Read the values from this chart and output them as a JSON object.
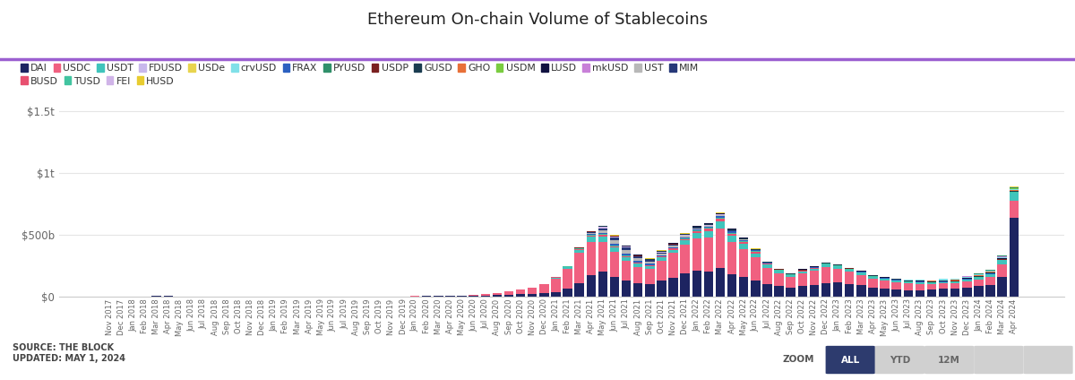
{
  "title": "Ethereum On-chain Volume of Stablecoins",
  "background_color": "#ffffff",
  "accent_line_color": "#9b59b6",
  "source_text": "SOURCE: THE BLOCK\nUPDATED: MAY 1, 2024",
  "months": [
    "Nov 2017",
    "Dec 2017",
    "Jan 2018",
    "Feb 2018",
    "Mar 2018",
    "Apr 2018",
    "May 2018",
    "Jun 2018",
    "Jul 2018",
    "Aug 2018",
    "Sep 2018",
    "Oct 2018",
    "Nov 2018",
    "Dec 2018",
    "Jan 2019",
    "Feb 2019",
    "Mar 2019",
    "Apr 2019",
    "May 2019",
    "Jun 2019",
    "Jul 2019",
    "Aug 2019",
    "Sep 2019",
    "Oct 2019",
    "Nov 2019",
    "Dec 2019",
    "Jan 2020",
    "Feb 2020",
    "Mar 2020",
    "Apr 2020",
    "May 2020",
    "Jun 2020",
    "Jul 2020",
    "Aug 2020",
    "Sep 2020",
    "Oct 2020",
    "Nov 2020",
    "Dec 2020",
    "Jan 2021",
    "Feb 2021",
    "Mar 2021",
    "Apr 2021",
    "May 2021",
    "Jun 2021",
    "Jul 2021",
    "Aug 2021",
    "Sep 2021",
    "Oct 2021",
    "Nov 2021",
    "Dec 2021",
    "Jan 2022",
    "Feb 2022",
    "Mar 2022",
    "Apr 2022",
    "May 2022",
    "Jun 2022",
    "Jul 2022",
    "Aug 2022",
    "Sep 2022",
    "Oct 2022",
    "Nov 2022",
    "Dec 2022",
    "Jan 2023",
    "Feb 2023",
    "Mar 2023",
    "Apr 2023",
    "May 2023",
    "Jun 2023",
    "Jul 2023",
    "Aug 2023",
    "Sep 2023",
    "Oct 2023",
    "Nov 2023",
    "Dec 2023",
    "Jan 2024",
    "Feb 2024",
    "Mar 2024",
    "Apr 2024"
  ],
  "legend_row1": [
    "DAI",
    "USDC",
    "USDT",
    "FDUSD",
    "USDe",
    "crvUSD",
    "FRAX",
    "PYUSD",
    "USDP",
    "GUSD",
    "GHO",
    "USDM",
    "LUSD",
    "mkUSD",
    "UST",
    "MIM"
  ],
  "legend_row2": [
    "BUSD",
    "TUSD",
    "FEI",
    "HUSD"
  ],
  "colors": {
    "DAI": "#1d2461",
    "USDC": "#f06080",
    "USDT": "#40c4bc",
    "FDUSD": "#c8b8ec",
    "USDe": "#e8d44e",
    "crvUSD": "#80e0e8",
    "FRAX": "#2c60c0",
    "PYUSD": "#30906a",
    "USDP": "#7a2020",
    "GUSD": "#1a3c50",
    "GHO": "#e87038",
    "USDM": "#7acc40",
    "LUSD": "#111240",
    "mkUSD": "#c880d8",
    "UST": "#b8b8b8",
    "MIM": "#263878",
    "BUSD": "#e85070",
    "TUSD": "#42c4a0",
    "FEI": "#d0b4e8",
    "HUSD": "#e8cc30"
  },
  "stack_order": [
    "DAI",
    "USDC",
    "USDT",
    "BUSD",
    "TUSD",
    "FRAX",
    "UST",
    "MIM",
    "FEI",
    "USDP",
    "GUSD",
    "LUSD",
    "GHO",
    "crvUSD",
    "mkUSD",
    "USDM",
    "PYUSD",
    "FDUSD",
    "USDe",
    "HUSD"
  ],
  "series": {
    "DAI": [
      0.3,
      0.4,
      0.8,
      1.5,
      2.5,
      2.0,
      1.5,
      1.2,
      1.0,
      0.8,
      0.6,
      0.5,
      0.4,
      0.3,
      0.3,
      0.3,
      0.3,
      0.3,
      0.4,
      0.6,
      0.8,
      1.0,
      0.9,
      0.8,
      1.0,
      1.2,
      1.5,
      1.8,
      3.0,
      2.5,
      3.0,
      4.5,
      8.0,
      11.0,
      15.0,
      18.0,
      22.0,
      28.0,
      35,
      60,
      110,
      170,
      200,
      160,
      130,
      110,
      100,
      125,
      150,
      190,
      210,
      200,
      230,
      180,
      155,
      125,
      100,
      85,
      70,
      85,
      95,
      110,
      115,
      100,
      90,
      70,
      60,
      55,
      50,
      52,
      55,
      60,
      65,
      72,
      82,
      95,
      160,
      636
    ],
    "USDC": [
      0,
      0,
      0,
      0,
      0,
      0,
      0,
      0,
      0,
      0,
      0,
      0,
      0,
      0,
      0,
      0,
      0,
      0,
      0,
      0,
      0,
      0,
      0,
      0,
      0,
      0,
      0.8,
      1.5,
      3.0,
      3.0,
      4.5,
      7.0,
      12.0,
      18.0,
      28.0,
      36.0,
      50.0,
      72.0,
      110,
      160,
      240,
      270,
      240,
      200,
      160,
      130,
      125,
      165,
      200,
      230,
      260,
      280,
      320,
      260,
      230,
      190,
      130,
      100,
      85,
      100,
      110,
      125,
      110,
      100,
      85,
      75,
      68,
      62,
      55,
      50,
      45,
      45,
      42,
      50,
      55,
      65,
      100,
      140
    ],
    "USDT": [
      0,
      0,
      0,
      0,
      0,
      0,
      0,
      0,
      0,
      0,
      0,
      0,
      0,
      0,
      0,
      0,
      0,
      0,
      0,
      0,
      0,
      0,
      0,
      0,
      0,
      0,
      0,
      0,
      0,
      0,
      0,
      0,
      0,
      0,
      0,
      0,
      0,
      0,
      8,
      15,
      28,
      42,
      42,
      35,
      28,
      24,
      20,
      24,
      28,
      34,
      42,
      48,
      55,
      48,
      42,
      34,
      26,
      20,
      16,
      18,
      20,
      24,
      20,
      18,
      18,
      15,
      14,
      12,
      11,
      10,
      8,
      9,
      10,
      13,
      16,
      20,
      32,
      65
    ],
    "FDUSD": [
      0,
      0,
      0,
      0,
      0,
      0,
      0,
      0,
      0,
      0,
      0,
      0,
      0,
      0,
      0,
      0,
      0,
      0,
      0,
      0,
      0,
      0,
      0,
      0,
      0,
      0,
      0,
      0,
      0,
      0,
      0,
      0,
      0,
      0,
      0,
      0,
      0,
      0,
      0,
      0,
      0,
      0,
      0,
      0,
      0,
      0,
      0,
      0,
      0,
      0,
      0,
      0,
      0,
      0,
      0,
      0,
      0,
      0,
      0,
      0,
      0,
      0,
      0,
      0,
      0,
      0,
      0,
      0,
      0,
      0,
      0,
      0,
      0,
      0,
      0,
      0,
      0,
      6
    ],
    "USDe": [
      0,
      0,
      0,
      0,
      0,
      0,
      0,
      0,
      0,
      0,
      0,
      0,
      0,
      0,
      0,
      0,
      0,
      0,
      0,
      0,
      0,
      0,
      0,
      0,
      0,
      0,
      0,
      0,
      0,
      0,
      0,
      0,
      0,
      0,
      0,
      0,
      0,
      0,
      0,
      0,
      0,
      0,
      0,
      0,
      0,
      0,
      0,
      0,
      0,
      0,
      0,
      0,
      0,
      0,
      0,
      0,
      0,
      0,
      0,
      0,
      0,
      0,
      0,
      0,
      0,
      0,
      0,
      0,
      0,
      0,
      0,
      0,
      0,
      0,
      0,
      0,
      0,
      4
    ],
    "BUSD": [
      0,
      0,
      0,
      0,
      0,
      0,
      0,
      0,
      0,
      0,
      0,
      0,
      0,
      0,
      0,
      0,
      0,
      0,
      0,
      0,
      0,
      0,
      0,
      0,
      0,
      0,
      0,
      0,
      0,
      0,
      0,
      0,
      0,
      0,
      0,
      0,
      0,
      0,
      3,
      5,
      8,
      12,
      15,
      12,
      9,
      7,
      6,
      7,
      9,
      12,
      15,
      18,
      22,
      18,
      15,
      12,
      8,
      5,
      3,
      3,
      3,
      3,
      2,
      1,
      0,
      0,
      0,
      0,
      0,
      0,
      0,
      0,
      0,
      0,
      0,
      0,
      0,
      0
    ],
    "TUSD": [
      0,
      0,
      0,
      0,
      0,
      0,
      0,
      0,
      0,
      0,
      0,
      0,
      0,
      0,
      0,
      0,
      0,
      0,
      0,
      0,
      0,
      0,
      0,
      0,
      0,
      0,
      0,
      0,
      0,
      0,
      0,
      0,
      0,
      0,
      0,
      0,
      0,
      0,
      2,
      3,
      5,
      7,
      7,
      6,
      5,
      4,
      4,
      5,
      5,
      7,
      8,
      9,
      11,
      10,
      8,
      7,
      5,
      4,
      3,
      3,
      3,
      3,
      3,
      3,
      3,
      3,
      3,
      3,
      3,
      3,
      3,
      3,
      3,
      3,
      3,
      3,
      3,
      3
    ],
    "UST": [
      0,
      0,
      0,
      0,
      0,
      0,
      0,
      0,
      0,
      0,
      0,
      0,
      0,
      0,
      0,
      0,
      0,
      0,
      0,
      0,
      0,
      0,
      0,
      0,
      0,
      0,
      0,
      0,
      0,
      0,
      0,
      0,
      0,
      0,
      0,
      0,
      0,
      0,
      0,
      0,
      0,
      8,
      22,
      28,
      32,
      26,
      20,
      16,
      14,
      10,
      7,
      5,
      4,
      3,
      2,
      0,
      0,
      0,
      0,
      0,
      0,
      0,
      0,
      0,
      0,
      0,
      0,
      0,
      0,
      0,
      0,
      0,
      0,
      0,
      0,
      0,
      0,
      0
    ],
    "FRAX": [
      0,
      0,
      0,
      0,
      0,
      0,
      0,
      0,
      0,
      0,
      0,
      0,
      0,
      0,
      0,
      0,
      0,
      0,
      0,
      0,
      0,
      0,
      0,
      0,
      0,
      0,
      0,
      0,
      0,
      0,
      0,
      0,
      0,
      0,
      0,
      0,
      0,
      0,
      0,
      0,
      0,
      3,
      7,
      11,
      13,
      10,
      8,
      7,
      6,
      7,
      8,
      11,
      14,
      11,
      8,
      6,
      5,
      4,
      3,
      3,
      3,
      3,
      3,
      3,
      3,
      3,
      3,
      3,
      3,
      3,
      3,
      3,
      3,
      3,
      3,
      3,
      4,
      4
    ],
    "MIM": [
      0,
      0,
      0,
      0,
      0,
      0,
      0,
      0,
      0,
      0,
      0,
      0,
      0,
      0,
      0,
      0,
      0,
      0,
      0,
      0,
      0,
      0,
      0,
      0,
      0,
      0,
      0,
      0,
      0,
      0,
      0,
      0,
      0,
      0,
      0,
      0,
      0,
      0,
      0,
      0,
      0,
      7,
      20,
      26,
      20,
      13,
      10,
      8,
      7,
      5,
      4,
      3,
      3,
      3,
      2,
      1,
      0,
      0,
      0,
      0,
      0,
      0,
      0,
      0,
      0,
      0,
      0,
      0,
      0,
      0,
      0,
      0,
      0,
      0,
      0,
      0,
      0,
      0
    ],
    "USDP": [
      0,
      0,
      0,
      0,
      0,
      0,
      0,
      0,
      0,
      0,
      0,
      0,
      0,
      0,
      0,
      0,
      0,
      0,
      0,
      0,
      0,
      0,
      0,
      0,
      0,
      0,
      0,
      0,
      0,
      0,
      0,
      0,
      0,
      0,
      0,
      0,
      0,
      0,
      0,
      2,
      3,
      4,
      4,
      3,
      3,
      3,
      3,
      3,
      3,
      3,
      3,
      3,
      3,
      3,
      2,
      2,
      2,
      2,
      2,
      2,
      2,
      2,
      2,
      2,
      2,
      2,
      2,
      2,
      2,
      2,
      2,
      2,
      2,
      2,
      2,
      2,
      2,
      2
    ],
    "GUSD": [
      0,
      0,
      0,
      0,
      0,
      0,
      0,
      0,
      0,
      0,
      0,
      0,
      0,
      0,
      0,
      0,
      0,
      0,
      0,
      0,
      0,
      0,
      0,
      0,
      0,
      0,
      0,
      0,
      0,
      0,
      0,
      0,
      0,
      0,
      0,
      0,
      0,
      0,
      0,
      0,
      0,
      2,
      3,
      3,
      3,
      3,
      3,
      3,
      3,
      3,
      3,
      3,
      3,
      3,
      3,
      3,
      3,
      3,
      3,
      3,
      3,
      3,
      3,
      3,
      3,
      3,
      3,
      3,
      3,
      3,
      3,
      3,
      3,
      3,
      3,
      3,
      3,
      3
    ],
    "LUSD": [
      0,
      0,
      0,
      0,
      0,
      0,
      0,
      0,
      0,
      0,
      0,
      0,
      0,
      0,
      0,
      0,
      0,
      0,
      0,
      0,
      0,
      0,
      0,
      0,
      0,
      0,
      0,
      0,
      0,
      0,
      0,
      0,
      0,
      0,
      0,
      0,
      0,
      0,
      0,
      0,
      0,
      0,
      2,
      3,
      4,
      4,
      4,
      4,
      4,
      4,
      5,
      7,
      8,
      7,
      6,
      5,
      4,
      3,
      3,
      3,
      3,
      3,
      3,
      3,
      3,
      3,
      3,
      3,
      3,
      3,
      3,
      3,
      3,
      3,
      3,
      3,
      3,
      3
    ],
    "FEI": [
      0,
      0,
      0,
      0,
      0,
      0,
      0,
      0,
      0,
      0,
      0,
      0,
      0,
      0,
      0,
      0,
      0,
      0,
      0,
      0,
      0,
      0,
      0,
      0,
      0,
      0,
      0,
      0,
      0,
      0,
      0,
      0,
      0,
      0,
      0,
      0,
      0,
      0,
      0,
      0,
      0,
      4,
      10,
      7,
      4,
      3,
      3,
      3,
      3,
      3,
      3,
      3,
      3,
      2,
      2,
      1,
      0,
      0,
      0,
      0,
      0,
      0,
      0,
      0,
      0,
      0,
      0,
      0,
      0,
      0,
      0,
      0,
      0,
      0,
      0,
      0,
      0,
      0
    ],
    "GHO": [
      0,
      0,
      0,
      0,
      0,
      0,
      0,
      0,
      0,
      0,
      0,
      0,
      0,
      0,
      0,
      0,
      0,
      0,
      0,
      0,
      0,
      0,
      0,
      0,
      0,
      0,
      0,
      0,
      0,
      0,
      0,
      0,
      0,
      0,
      0,
      0,
      0,
      0,
      0,
      0,
      0,
      0,
      0,
      0,
      0,
      0,
      0,
      0,
      0,
      0,
      0,
      0,
      0,
      0,
      0,
      0,
      0,
      0,
      0,
      0,
      0,
      0,
      0,
      0,
      0,
      0,
      0,
      0,
      0,
      2,
      3,
      4,
      4,
      4,
      4,
      4,
      4,
      4
    ],
    "crvUSD": [
      0,
      0,
      0,
      0,
      0,
      0,
      0,
      0,
      0,
      0,
      0,
      0,
      0,
      0,
      0,
      0,
      0,
      0,
      0,
      0,
      0,
      0,
      0,
      0,
      0,
      0,
      0,
      0,
      0,
      0,
      0,
      0,
      0,
      0,
      0,
      0,
      0,
      0,
      0,
      0,
      0,
      0,
      0,
      0,
      0,
      0,
      0,
      0,
      0,
      0,
      0,
      0,
      0,
      0,
      0,
      0,
      0,
      0,
      0,
      0,
      0,
      0,
      0,
      0,
      0,
      0,
      2,
      3,
      4,
      5,
      7,
      8,
      8,
      8,
      8,
      8,
      8,
      8
    ],
    "mkUSD": [
      0,
      0,
      0,
      0,
      0,
      0,
      0,
      0,
      0,
      0,
      0,
      0,
      0,
      0,
      0,
      0,
      0,
      0,
      0,
      0,
      0,
      0,
      0,
      0,
      0,
      0,
      0,
      0,
      0,
      0,
      0,
      0,
      0,
      0,
      0,
      0,
      0,
      0,
      0,
      0,
      0,
      0,
      0,
      0,
      0,
      0,
      0,
      0,
      0,
      0,
      0,
      0,
      0,
      0,
      0,
      0,
      0,
      0,
      0,
      0,
      0,
      0,
      0,
      0,
      0,
      0,
      0,
      0,
      0,
      0,
      0,
      2,
      3,
      4,
      4,
      4,
      4,
      4
    ],
    "USDM": [
      0,
      0,
      0,
      0,
      0,
      0,
      0,
      0,
      0,
      0,
      0,
      0,
      0,
      0,
      0,
      0,
      0,
      0,
      0,
      0,
      0,
      0,
      0,
      0,
      0,
      0,
      0,
      0,
      0,
      0,
      0,
      0,
      0,
      0,
      0,
      0,
      0,
      0,
      0,
      0,
      0,
      0,
      0,
      0,
      0,
      0,
      0,
      0,
      0,
      0,
      0,
      0,
      0,
      0,
      0,
      0,
      0,
      0,
      0,
      0,
      0,
      0,
      0,
      0,
      0,
      0,
      0,
      0,
      0,
      0,
      0,
      0,
      0,
      0,
      0,
      2,
      3,
      4
    ],
    "PYUSD": [
      0,
      0,
      0,
      0,
      0,
      0,
      0,
      0,
      0,
      0,
      0,
      0,
      0,
      0,
      0,
      0,
      0,
      0,
      0,
      0,
      0,
      0,
      0,
      0,
      0,
      0,
      0,
      0,
      0,
      0,
      0,
      0,
      0,
      0,
      0,
      0,
      0,
      0,
      0,
      0,
      0,
      0,
      0,
      0,
      0,
      0,
      0,
      0,
      0,
      0,
      0,
      0,
      0,
      0,
      0,
      0,
      0,
      0,
      0,
      0,
      0,
      0,
      0,
      0,
      0,
      0,
      0,
      0,
      0,
      0,
      0,
      0,
      0,
      2,
      3,
      4,
      4,
      4
    ],
    "HUSD": [
      0,
      0,
      0,
      0,
      0,
      0,
      0,
      0,
      0,
      0,
      0,
      0,
      0,
      0,
      0,
      0,
      0,
      0,
      0,
      0,
      0,
      0,
      0,
      0,
      0,
      0,
      0,
      0,
      0,
      0,
      0,
      0,
      0,
      0,
      0,
      0,
      0,
      0,
      0,
      0,
      0,
      0,
      2,
      2,
      2,
      2,
      2,
      2,
      2,
      2,
      2,
      2,
      2,
      2,
      2,
      2,
      0,
      0,
      0,
      0,
      0,
      0,
      0,
      0,
      0,
      0,
      0,
      0,
      0,
      0,
      0,
      0,
      0,
      0,
      0,
      0,
      0,
      0
    ]
  }
}
